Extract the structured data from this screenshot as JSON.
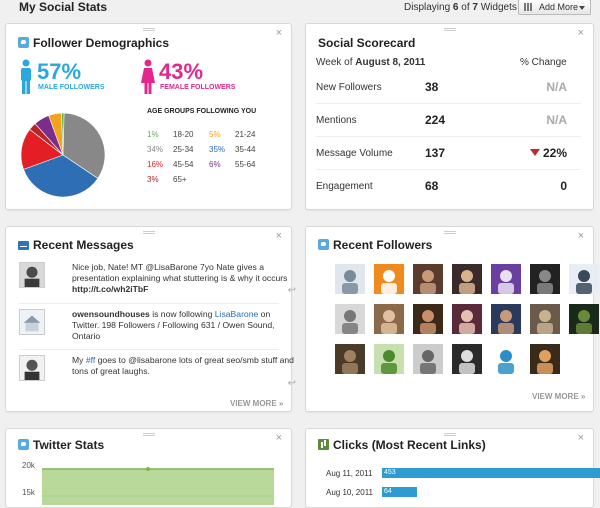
{
  "header": {
    "title": "My Social Stats",
    "displaying_prefix": "Displaying ",
    "displaying_shown": "6",
    "displaying_mid": " of ",
    "displaying_total": "7",
    "displaying_suffix": " Widgets",
    "add_more_label": "Add More"
  },
  "demographics": {
    "title": "Follower Demographics",
    "male_pct": "57%",
    "male_label": "MALE FOLLOWERS",
    "female_pct": "43%",
    "female_label": "FEMALE FOLLOWERS",
    "age_title": "AGE GROUPS FOLLOWING YOU",
    "age_groups": [
      {
        "pct": "1%",
        "range": "18-20",
        "color": "#58b847"
      },
      {
        "pct": "5%",
        "range": "21-24",
        "color": "#f6a21c"
      },
      {
        "pct": "34%",
        "range": "25-34",
        "color": "#888888"
      },
      {
        "pct": "35%",
        "range": "35-44",
        "color": "#2d6eb4"
      },
      {
        "pct": "16%",
        "range": "45-54",
        "color": "#e31e24"
      },
      {
        "pct": "6%",
        "range": "55-64",
        "color": "#7b2d8c"
      },
      {
        "pct": "3%",
        "range": "65+",
        "color": "#b7242a"
      }
    ],
    "male_color": "#2ba7df",
    "female_color": "#e2288c"
  },
  "scorecard": {
    "title": "Social Scorecard",
    "week_prefix": "Week of ",
    "week": "August 8, 2011",
    "change_header": "% Change",
    "rows": [
      {
        "label": "New Followers",
        "value": "38",
        "change": "N/A"
      },
      {
        "label": "Mentions",
        "value": "224",
        "change": "N/A"
      },
      {
        "label": "Message Volume",
        "value": "137",
        "change": "22%"
      },
      {
        "label": "Engagement",
        "value": "68",
        "change": "0"
      }
    ]
  },
  "messages": {
    "title": "Recent Messages",
    "view_more": "VIEW MORE »",
    "items": [
      {
        "text": "Nice job, Nate! MT @LisaBarone 7yo Nate gives a presentation explaining what stuttering is & why it occurs ",
        "link": "http://t.co/wh2iTbF"
      },
      {
        "user": "owensoundhouses",
        "text": " is now following ",
        "target": "LisaBarone",
        "rest": " on Twitter. 198 Followers / Following 631 / Owen Sound, Ontario"
      },
      {
        "text": "My ",
        "tag": "#ff",
        "text2": " goes to @lisabarone lots of great seo/smb stuff and tons of great laughs."
      }
    ]
  },
  "followers": {
    "title": "Recent Followers",
    "view_more": "VIEW MORE »"
  },
  "twitter_stats": {
    "title": "Twitter Stats",
    "y_labels": [
      "20k",
      "15k"
    ]
  },
  "clicks": {
    "title": "Clicks (Most Recent Links)",
    "rows": [
      {
        "date": "Aug 11, 2011",
        "value": "453",
        "fraction": 1.0
      },
      {
        "date": "Aug 10, 2011",
        "value": "64",
        "fraction": 0.141
      }
    ]
  }
}
